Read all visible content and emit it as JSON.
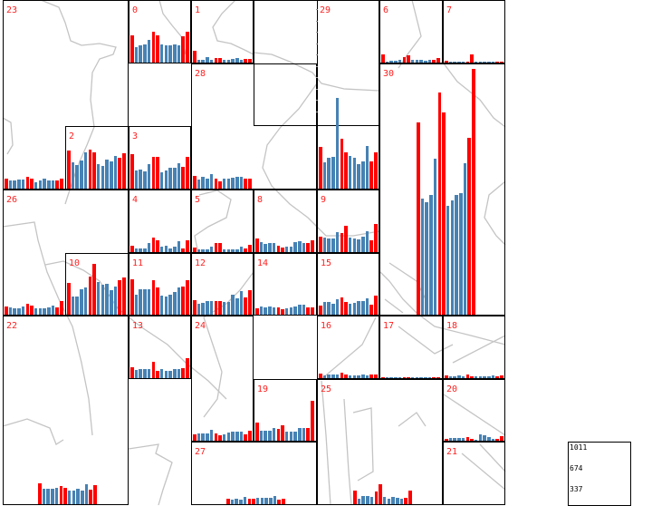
{
  "chart_data": {
    "type": "bar",
    "title": "",
    "description_of_series": "small-multiple bar charts, 14 bars per cell",
    "colors": {
      "normal": "#4682b4",
      "highlight": "#ff0000",
      "label": "#ff2020"
    },
    "highlight_indices": [
      0,
      5,
      6,
      12,
      13
    ],
    "legend": {
      "ticks": [
        "1011",
        "674",
        "337"
      ],
      "placement": "bottom-right"
    },
    "cells": [
      {
        "id": "23",
        "values": [
          165,
          135,
          135,
          150,
          150,
          195,
          165,
          105,
          135,
          165,
          135,
          135,
          135,
          165
        ]
      },
      {
        "id": "0",
        "values": [
          450,
          250,
          280,
          300,
          380,
          510,
          450,
          300,
          280,
          280,
          300,
          290,
          440,
          510
        ]
      },
      {
        "id": "1",
        "values": [
          195,
          45,
          45,
          90,
          45,
          75,
          75,
          45,
          45,
          60,
          75,
          45,
          60,
          60
        ]
      },
      {
        "id": "29",
        "values": [
          690,
          435,
          510,
          525,
          1500,
          825,
          600,
          540,
          510,
          405,
          450,
          705,
          450,
          600
        ]
      },
      {
        "id": "6",
        "values": [
          135,
          15,
          30,
          30,
          45,
          90,
          120,
          45,
          45,
          45,
          30,
          45,
          45,
          75
        ]
      },
      {
        "id": "7",
        "values": [
          25,
          10,
          10,
          10,
          10,
          10,
          130,
          10,
          15,
          10,
          10,
          10,
          15,
          15
        ]
      },
      {
        "id": "28",
        "values": [
          210,
          150,
          195,
          165,
          240,
          165,
          120,
          165,
          165,
          180,
          195,
          195,
          165,
          165
        ]
      },
      {
        "id": "30",
        "values": [
          3180,
          1920,
          1860,
          1980,
          2580,
          3675,
          3345,
          1800,
          1890,
          1980,
          2010,
          2505,
          2925,
          4065
        ]
      },
      {
        "id": "2",
        "values": [
          630,
          435,
          390,
          465,
          600,
          645,
          600,
          405,
          375,
          480,
          450,
          540,
          510,
          585
        ]
      },
      {
        "id": "3",
        "values": [
          570,
          300,
          315,
          285,
          405,
          525,
          525,
          270,
          300,
          345,
          345,
          420,
          360,
          525
        ]
      },
      {
        "id": "26",
        "values": [
          135,
          120,
          105,
          105,
          135,
          180,
          150,
          105,
          105,
          105,
          120,
          150,
          120,
          225
        ]
      },
      {
        "id": "4",
        "values": [
          105,
          60,
          60,
          60,
          150,
          240,
          195,
          90,
          105,
          60,
          90,
          180,
          60,
          195
        ]
      },
      {
        "id": "5",
        "values": [
          75,
          45,
          45,
          45,
          90,
          150,
          150,
          45,
          45,
          45,
          45,
          90,
          60,
          120
        ]
      },
      {
        "id": "8",
        "values": [
          225,
          165,
          135,
          150,
          150,
          105,
          75,
          90,
          90,
          165,
          180,
          150,
          150,
          195
        ]
      },
      {
        "id": "9",
        "values": [
          255,
          240,
          225,
          225,
          330,
          315,
          435,
          240,
          225,
          210,
          255,
          345,
          195,
          465
        ]
      },
      {
        "id": "10",
        "values": [
          525,
          300,
          300,
          420,
          450,
          630,
          840,
          540,
          495,
          510,
          405,
          465,
          570,
          615
        ]
      },
      {
        "id": "11",
        "values": [
          585,
          330,
          420,
          420,
          420,
          570,
          450,
          315,
          300,
          330,
          375,
          450,
          465,
          570
        ]
      },
      {
        "id": "12",
        "values": [
          240,
          180,
          195,
          225,
          225,
          225,
          225,
          210,
          210,
          330,
          270,
          390,
          285,
          405
        ]
      },
      {
        "id": "14",
        "values": [
          105,
          135,
          120,
          135,
          120,
          120,
          90,
          105,
          120,
          135,
          165,
          165,
          120,
          120
        ]
      },
      {
        "id": "15",
        "values": [
          150,
          210,
          210,
          180,
          255,
          285,
          210,
          180,
          195,
          225,
          225,
          270,
          165,
          315
        ]
      },
      {
        "id": "22",
        "values": [
          345,
          255,
          255,
          255,
          270,
          300,
          270,
          225,
          225,
          255,
          225,
          330,
          240,
          315
        ]
      },
      {
        "id": "13",
        "values": [
          180,
          135,
          150,
          150,
          150,
          270,
          120,
          150,
          120,
          120,
          150,
          150,
          165,
          330
        ]
      },
      {
        "id": "24",
        "values": [
          105,
          120,
          120,
          120,
          180,
          120,
          90,
          105,
          135,
          150,
          150,
          150,
          105,
          165
        ]
      },
      {
        "id": "16",
        "values": [
          75,
          45,
          60,
          60,
          60,
          90,
          60,
          45,
          45,
          45,
          60,
          45,
          60,
          60
        ]
      },
      {
        "id": "17",
        "values": [
          10,
          10,
          10,
          10,
          10,
          15,
          10,
          10,
          10,
          10,
          10,
          10,
          15,
          10
        ]
      },
      {
        "id": "18",
        "values": [
          45,
          30,
          30,
          45,
          30,
          60,
          30,
          30,
          30,
          30,
          30,
          45,
          30,
          45
        ]
      },
      {
        "id": "19",
        "values": [
          300,
          165,
          165,
          165,
          210,
          195,
          255,
          150,
          150,
          150,
          210,
          210,
          210,
          660
        ]
      },
      {
        "id": "25",
        "values": [
          225,
          90,
          135,
          135,
          120,
          210,
          330,
          120,
          90,
          120,
          105,
          90,
          105,
          225
        ]
      },
      {
        "id": "20",
        "values": [
          25,
          45,
          45,
          45,
          45,
          60,
          25,
          10,
          105,
          90,
          60,
          35,
          25,
          75
        ]
      },
      {
        "id": "21",
        "values": [
          0,
          0,
          0,
          0,
          0,
          0,
          0,
          0,
          0,
          0,
          0,
          0,
          0,
          0
        ]
      },
      {
        "id": "27",
        "values": [
          90,
          75,
          90,
          75,
          120,
          90,
          90,
          105,
          105,
          105,
          105,
          135,
          75,
          90
        ]
      }
    ]
  }
}
